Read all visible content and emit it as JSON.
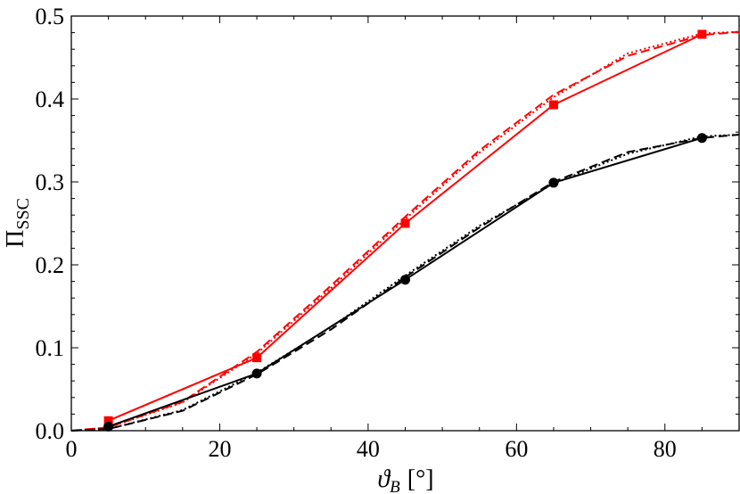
{
  "chart_data": {
    "type": "line",
    "xlabel_symbol": "ϑ",
    "xlabel_sub": "B",
    "xlabel_unit": "[°]",
    "ylabel_symbol": "Π",
    "ylabel_sub": "SSC",
    "xlim": [
      0,
      90
    ],
    "ylim": [
      0,
      0.5
    ],
    "xticks": [
      0,
      20,
      40,
      60,
      80
    ],
    "xtick_labels": [
      "0",
      "20",
      "40",
      "60",
      "80"
    ],
    "yticks": [
      0.0,
      0.1,
      0.2,
      0.3,
      0.4,
      0.5
    ],
    "ytick_labels": [
      "0.0",
      "0.1",
      "0.2",
      "0.3",
      "0.4",
      "0.5"
    ],
    "grid": false,
    "series": [
      {
        "color": "#ff0000",
        "style": "solid",
        "marker": "square",
        "x": [
          5,
          25,
          45,
          65,
          85
        ],
        "y": [
          0.012,
          0.088,
          0.25,
          0.393,
          0.478
        ]
      },
      {
        "color": "#ff0000",
        "style": "dashed",
        "x": [
          0,
          5,
          15,
          25,
          35,
          45,
          55,
          65,
          75,
          85,
          90
        ],
        "y": [
          0.0,
          0.004,
          0.035,
          0.095,
          0.175,
          0.258,
          0.338,
          0.405,
          0.452,
          0.477,
          0.481
        ]
      },
      {
        "color": "#ff0000",
        "style": "dotted",
        "x": [
          0,
          5,
          15,
          25,
          35,
          45,
          55,
          65,
          75,
          85,
          90
        ],
        "y": [
          0.0,
          0.004,
          0.034,
          0.093,
          0.172,
          0.255,
          0.335,
          0.402,
          0.455,
          0.479,
          0.481
        ]
      },
      {
        "color": "#000000",
        "style": "solid",
        "marker": "circle",
        "x": [
          5,
          25,
          45,
          65,
          85
        ],
        "y": [
          0.005,
          0.069,
          0.182,
          0.299,
          0.353
        ]
      },
      {
        "color": "#000000",
        "style": "dashed",
        "x": [
          0,
          5,
          15,
          25,
          35,
          45,
          55,
          65,
          75,
          85,
          90
        ],
        "y": [
          0.0,
          0.002,
          0.024,
          0.068,
          0.122,
          0.185,
          0.245,
          0.3,
          0.336,
          0.353,
          0.357
        ]
      },
      {
        "color": "#000000",
        "style": "dotted",
        "x": [
          0,
          5,
          15,
          25,
          35,
          45,
          55,
          65,
          75,
          85,
          90
        ],
        "y": [
          0.0,
          0.002,
          0.025,
          0.07,
          0.125,
          0.187,
          0.247,
          0.298,
          0.334,
          0.355,
          0.357
        ]
      }
    ]
  }
}
